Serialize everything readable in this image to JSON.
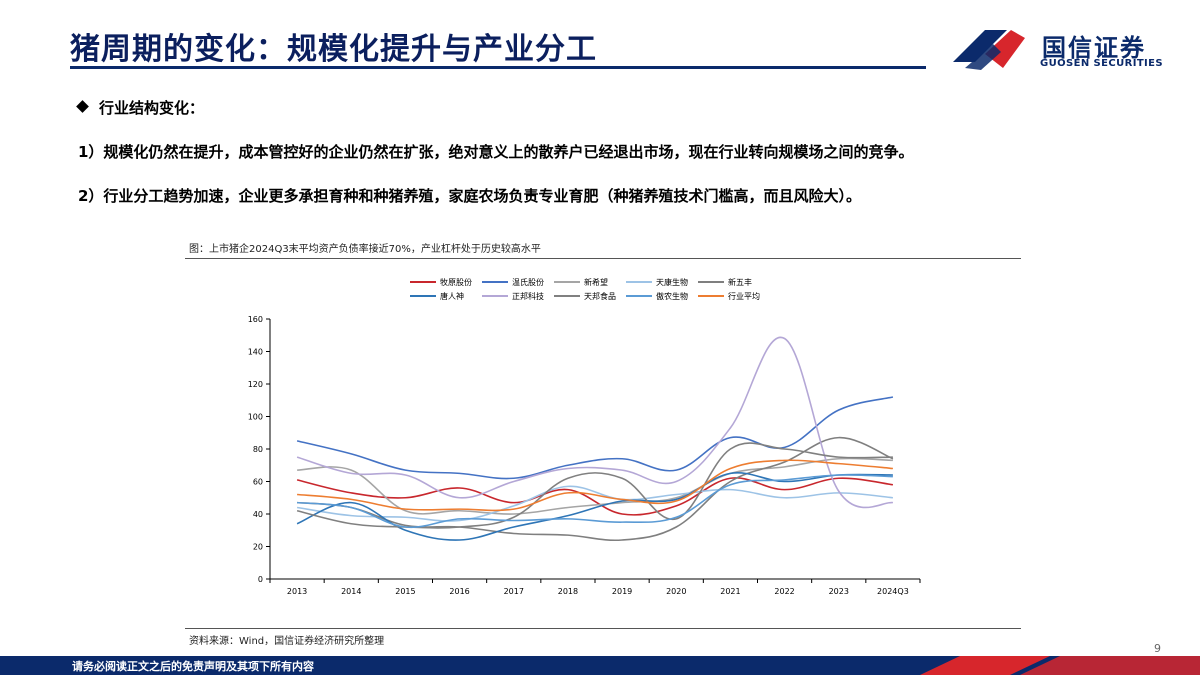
{
  "header": {
    "title": "猪周期的变化：规模化提升与产业分工",
    "logo_cn": "国信证券",
    "logo_en": "GUOSEN SECURITIES"
  },
  "content": {
    "bullet_heading": "行业结构变化：",
    "points": [
      "1）规模化仍然在提升，成本管控好的企业仍然在扩张，绝对意义上的散养户已经退出市场，现在行业转向规模场之间的竞争。",
      "2）行业分工趋势加速，企业更多承担育种和种猪养殖，家庭农场负责专业育肥（种猪养殖技术门槛高，而且风险大）。"
    ]
  },
  "chart_caption": "图：上市猪企2024Q3末平均资产负债率接近70%，产业杠杆处于历史较高水平",
  "source": "资料来源：Wind，国信证券经济研究所整理",
  "page_number": "9",
  "footer": {
    "disclaimer": "请务必阅读正文之后的免责声明及其项下所有内容"
  },
  "colors": {
    "brand_navy": "#0b2a6b",
    "brand_red": "#d7262c"
  },
  "chart_data": {
    "type": "line",
    "title": "",
    "xlabel": "",
    "ylabel": "",
    "ylim": [
      0,
      160
    ],
    "yticks": [
      0,
      20,
      40,
      60,
      80,
      100,
      120,
      140,
      160
    ],
    "grid": false,
    "legend_position": "top",
    "categories": [
      "2013",
      "2014",
      "2015",
      "2016",
      "2017",
      "2018",
      "2019",
      "2020",
      "2021",
      "2022",
      "2023",
      "2024Q3"
    ],
    "series": [
      {
        "name": "牧原股份",
        "color": "#c8272d",
        "values": [
          61,
          53,
          50,
          56,
          47,
          55,
          40,
          45,
          62,
          55,
          62,
          58
        ]
      },
      {
        "name": "温氏股份",
        "color": "#4472c4",
        "values": [
          85,
          77,
          67,
          65,
          62,
          70,
          74,
          67,
          87,
          81,
          104,
          112
        ]
      },
      {
        "name": "新希望",
        "color": "#a5a5a5",
        "values": [
          67,
          67,
          42,
          42,
          40,
          44,
          47,
          50,
          65,
          69,
          74,
          73
        ]
      },
      {
        "name": "天康生物",
        "color": "#9dc3e6",
        "values": [
          44,
          39,
          38,
          36,
          45,
          57,
          49,
          52,
          55,
          50,
          53,
          50
        ]
      },
      {
        "name": "新五丰",
        "color": "#7f7f7f",
        "values": [
          47,
          44,
          33,
          32,
          28,
          27,
          24,
          32,
          60,
          72,
          87,
          74
        ]
      },
      {
        "name": "唐人神",
        "color": "#2e75b6",
        "values": [
          34,
          47,
          30,
          24,
          32,
          39,
          48,
          49,
          65,
          60,
          64,
          64
        ]
      },
      {
        "name": "正邦科技",
        "color": "#b4a7d6",
        "values": [
          75,
          65,
          64,
          50,
          60,
          68,
          67,
          60,
          93,
          148,
          54,
          47
        ]
      },
      {
        "name": "天邦食品",
        "color": "#808080",
        "values": [
          42,
          34,
          32,
          32,
          38,
          62,
          62,
          37,
          80,
          80,
          75,
          75
        ]
      },
      {
        "name": "傲农生物",
        "color": "#5b9bd5",
        "values": [
          47,
          44,
          32,
          37,
          36,
          37,
          35,
          38,
          58,
          61,
          64,
          63
        ]
      },
      {
        "name": "行业平均",
        "color": "#ed7d31",
        "values": [
          52,
          49,
          43,
          43,
          43,
          53,
          49,
          48,
          68,
          73,
          71,
          68
        ]
      }
    ]
  }
}
